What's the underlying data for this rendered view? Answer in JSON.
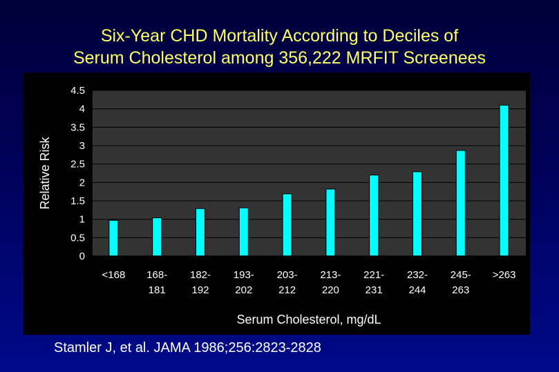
{
  "slide": {
    "title_line1": "Six-Year CHD Mortality According to Deciles of",
    "title_line2": "Serum Cholesterol among 356,222 MRFIT Screenees",
    "citation": "Stamler J, et al. JAMA 1986;256:2823-2828"
  },
  "colors": {
    "title": "#ffff66",
    "bar_fill": "#00ffff",
    "plot_background": "#333333",
    "panel_background": "#000000",
    "text": "#ffffff"
  },
  "chart_data": {
    "type": "bar",
    "categories": [
      [
        "<168"
      ],
      [
        "168-",
        "181"
      ],
      [
        "182-",
        "192"
      ],
      [
        "193-",
        "202"
      ],
      [
        "203-",
        "212"
      ],
      [
        "213-",
        "220"
      ],
      [
        "221-",
        "231"
      ],
      [
        "232-",
        "244"
      ],
      [
        "245-",
        "263"
      ],
      [
        ">263"
      ]
    ],
    "values": [
      0.97,
      1.04,
      1.29,
      1.31,
      1.69,
      1.82,
      2.2,
      2.29,
      2.87,
      4.1
    ],
    "xlabel": "Serum Cholesterol, mg/dL",
    "ylabel": "Relative Risk",
    "ylim": [
      0,
      4.5
    ],
    "yticks": [
      "0",
      "0.5",
      "1",
      "1.5",
      "2",
      "2.5",
      "3",
      "3.5",
      "4",
      "4.5"
    ],
    "grid": true,
    "legend": "none"
  }
}
